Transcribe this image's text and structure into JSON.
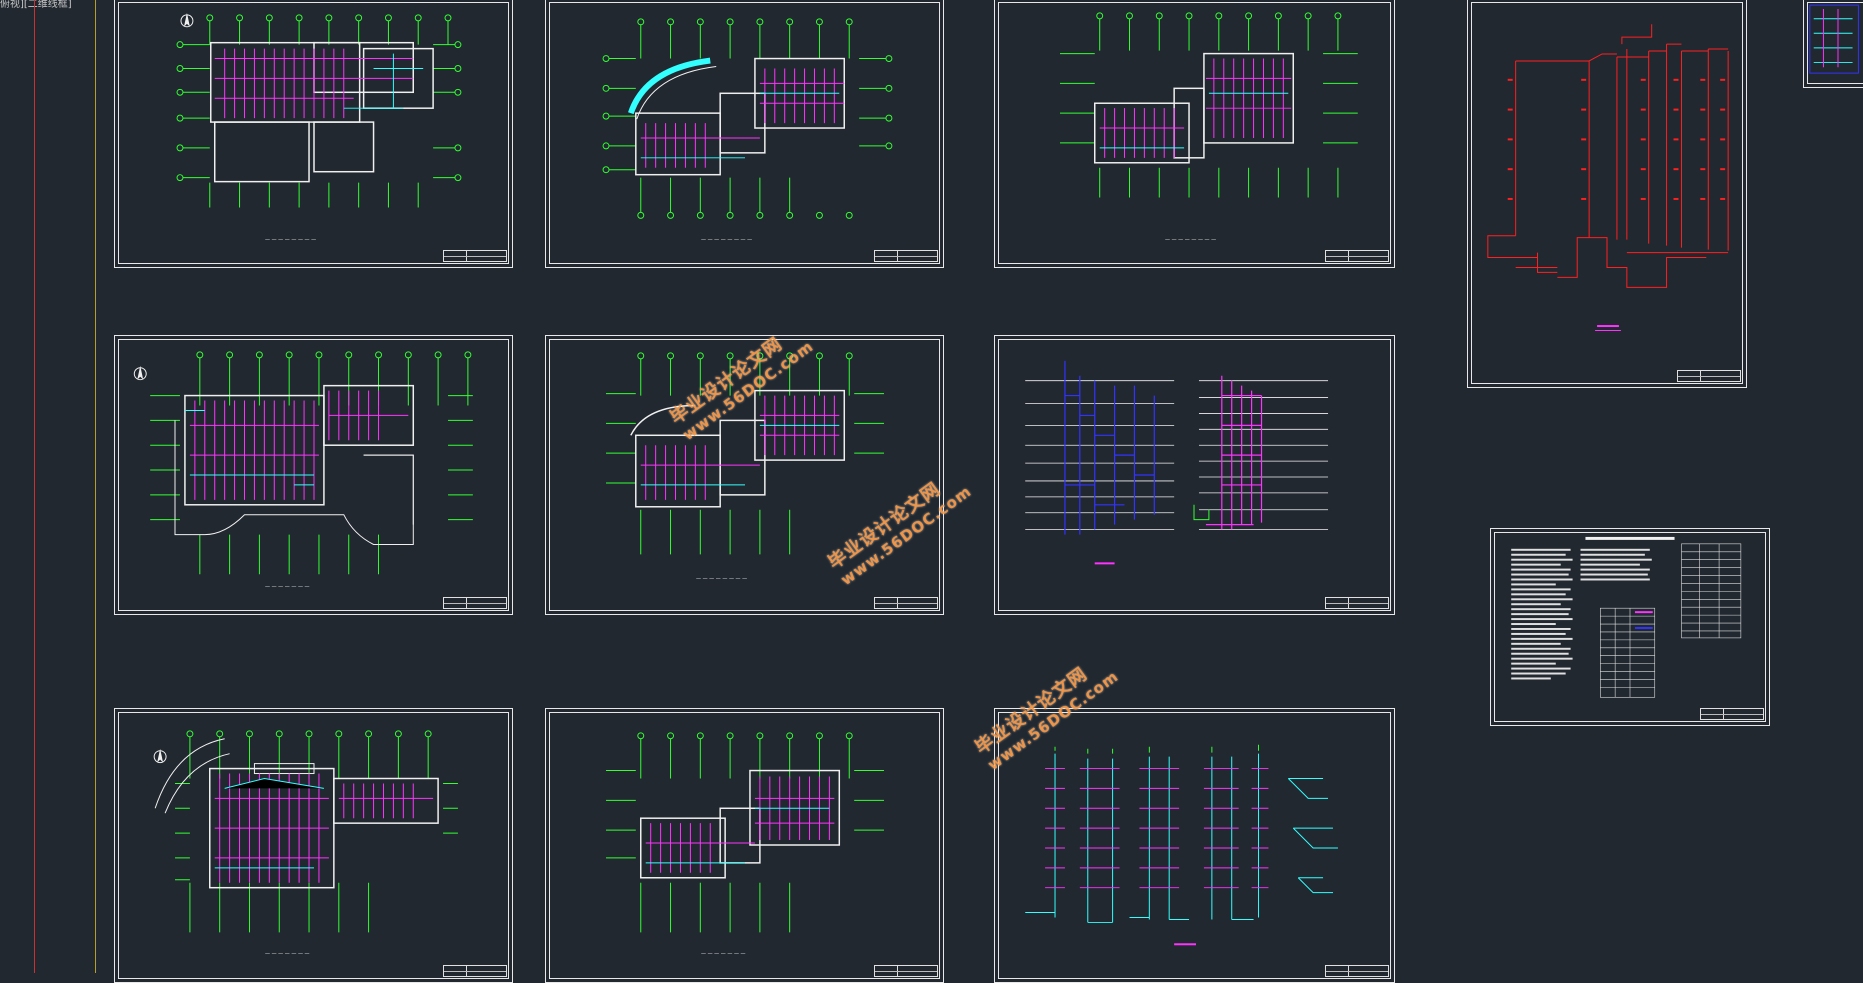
{
  "viewport": {
    "label": "俯视][二维线框]"
  },
  "watermarks": [
    {
      "line1": "毕业设计论文网",
      "line2": "www.56DOC.com"
    },
    {
      "line1": "毕业设计论文网",
      "line2": "www.56DOC.com"
    },
    {
      "line1": "毕业设计论文网",
      "line2": "www.56DOC.com"
    }
  ],
  "colors": {
    "background": "#212830",
    "sheet_border": "#e8e8e8",
    "axis_green": "#33ff33",
    "wall_white": "#f0f0f0",
    "pipe_magenta": "#ff33ff",
    "pipe_cyan": "#33ffff",
    "pipe_blue": "#3333ff",
    "pipe_red": "#ff2020",
    "watermark_orange": "#ff9a3c"
  },
  "sheets": [
    {
      "id": "floor-plan-1",
      "type": "floor-plan"
    },
    {
      "id": "floor-plan-2",
      "type": "floor-plan"
    },
    {
      "id": "floor-plan-3",
      "type": "floor-plan"
    },
    {
      "id": "floor-plan-4",
      "type": "floor-plan"
    },
    {
      "id": "floor-plan-5",
      "type": "floor-plan"
    },
    {
      "id": "riser-diagram-1",
      "type": "riser-diagram"
    },
    {
      "id": "floor-plan-6",
      "type": "floor-plan"
    },
    {
      "id": "floor-plan-7",
      "type": "floor-plan"
    },
    {
      "id": "riser-diagram-2",
      "type": "riser-diagram"
    },
    {
      "id": "red-riser-diagram",
      "type": "riser-diagram"
    },
    {
      "id": "design-notes",
      "type": "notes"
    },
    {
      "id": "partial-sheet",
      "type": "partial"
    }
  ]
}
